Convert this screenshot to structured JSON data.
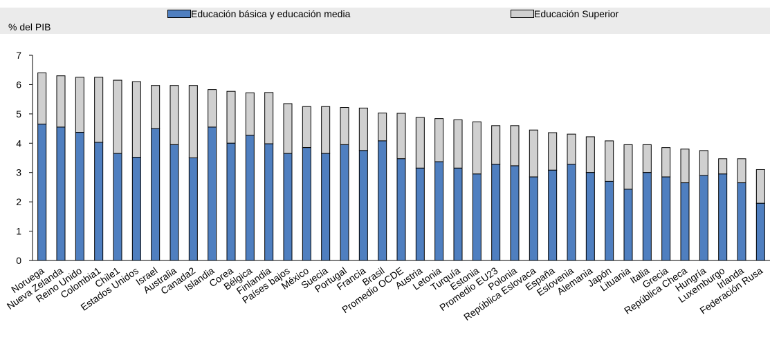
{
  "chart_data": {
    "type": "bar",
    "stacked": true,
    "ylabel": "% del PIB",
    "ylim": [
      0,
      7
    ],
    "yticks": [
      0,
      1,
      2,
      3,
      4,
      5,
      6,
      7
    ],
    "legend_position": "top",
    "colors": {
      "basic": "#4f7fc0",
      "tertiary": "#d0d0d0",
      "legend_band": "#ebebeb"
    },
    "categories": [
      "Noruega",
      "Nueva Zelanda",
      "Reino Unido",
      "Colombia1",
      "Chile1",
      "Estados Unidos",
      "Israel",
      "Australia",
      "Canada2",
      "Islandia",
      "Corea",
      "Bélgica",
      "Finlandia",
      "Países bajos",
      "México",
      "Suecia",
      "Portugal",
      "Francia",
      "Brasil",
      "Promedio OCDE",
      "Austria",
      "Letonia",
      "Turquía",
      "Estonia",
      "Promedio EU23",
      "Polonia",
      "República Eslovaca",
      "España",
      "Eslovenia",
      "Alemania",
      "Japón",
      "Lituania",
      "Italia",
      "Grecia",
      "República Checa",
      "Hungría",
      "Luxemburgo",
      "Irlanda",
      "Federación Rusa"
    ],
    "series": [
      {
        "name": "Educación básica y educación media",
        "values": [
          4.65,
          4.55,
          4.37,
          4.03,
          3.65,
          3.52,
          4.5,
          3.95,
          3.5,
          4.55,
          4.0,
          4.27,
          3.98,
          3.65,
          3.85,
          3.65,
          3.95,
          3.75,
          4.08,
          3.47,
          3.15,
          3.37,
          3.15,
          2.95,
          3.28,
          3.23,
          2.85,
          3.08,
          3.28,
          3.0,
          2.7,
          2.43,
          3.0,
          2.85,
          2.65,
          2.9,
          2.95,
          2.65,
          1.95
        ]
      },
      {
        "name": "Educación Superior",
        "values": [
          1.75,
          1.75,
          1.88,
          2.22,
          2.5,
          2.58,
          1.47,
          2.02,
          2.47,
          1.28,
          1.77,
          1.45,
          1.75,
          1.7,
          1.4,
          1.6,
          1.27,
          1.45,
          0.95,
          1.55,
          1.73,
          1.47,
          1.65,
          1.78,
          1.32,
          1.37,
          1.6,
          1.28,
          1.03,
          1.22,
          1.38,
          1.52,
          0.95,
          1.0,
          1.15,
          0.85,
          0.52,
          0.82,
          1.15
        ]
      }
    ]
  }
}
